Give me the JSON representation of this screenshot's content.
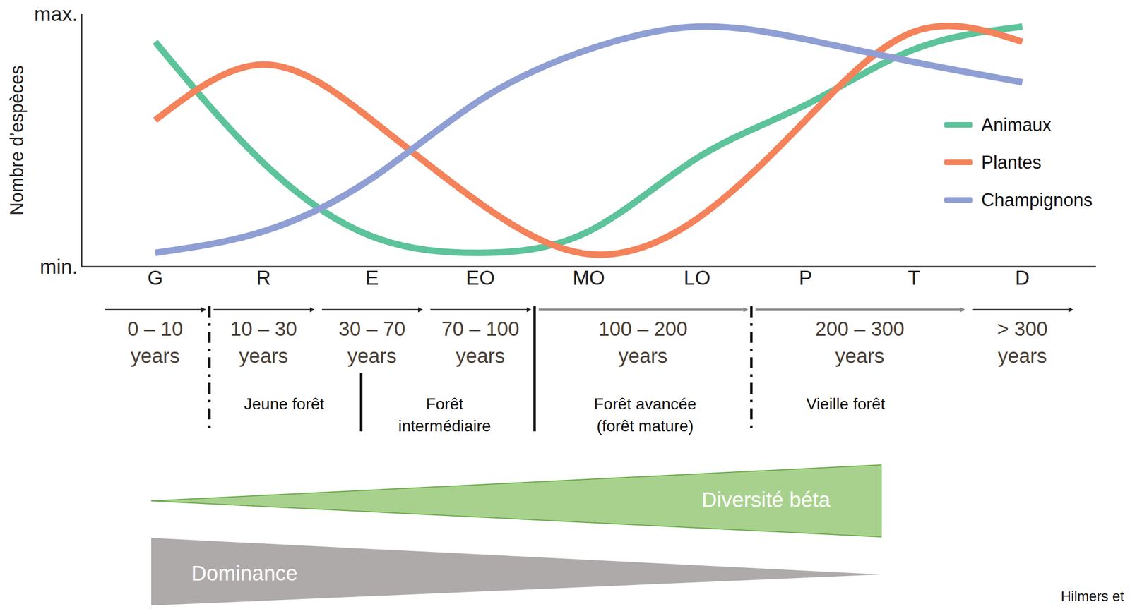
{
  "chart_data": {
    "type": "line",
    "y_label": "Nombre d’espèces",
    "categories": [
      "G",
      "R",
      "E",
      "EO",
      "MO",
      "LO",
      "P",
      "T",
      "D"
    ],
    "ylim": [
      0,
      1
    ],
    "yticks": [
      {
        "value": 0,
        "label": "min."
      },
      {
        "value": 1,
        "label": "max."
      }
    ],
    "grid": false,
    "legend": "right",
    "tick_labels": "x",
    "series": [
      {
        "name": "Animaux",
        "color": "#5cc39a",
        "values": [
          0.89,
          0.41,
          0.12,
          0.055,
          0.14,
          0.43,
          0.64,
          0.86,
          0.95
        ]
      },
      {
        "name": "Plantes",
        "color": "#f4825a",
        "values": [
          0.58,
          0.8,
          0.58,
          0.25,
          0.05,
          0.19,
          0.58,
          0.93,
          0.89
        ]
      },
      {
        "name": "Champignons",
        "color": "#8f9fd4",
        "values": [
          0.055,
          0.14,
          0.35,
          0.66,
          0.86,
          0.95,
          0.9,
          0.81,
          0.73
        ]
      }
    ],
    "age_classes": [
      "0 – 10",
      "10 – 30",
      "30 – 70",
      "70 – 100",
      "100 – 200",
      "200 – 300",
      "> 300"
    ],
    "age_unit": "years",
    "stages": [
      "Jeune forêt",
      "Forêt intermédiaire",
      "Forêt avancée (forêt mature)",
      "Vieille forêt"
    ],
    "gradients": [
      {
        "label": "Diversité béta",
        "color": "#a9d18e"
      },
      {
        "label": "Dominance",
        "color": "#aeaaaa"
      }
    ],
    "source": "Hilmers et"
  }
}
